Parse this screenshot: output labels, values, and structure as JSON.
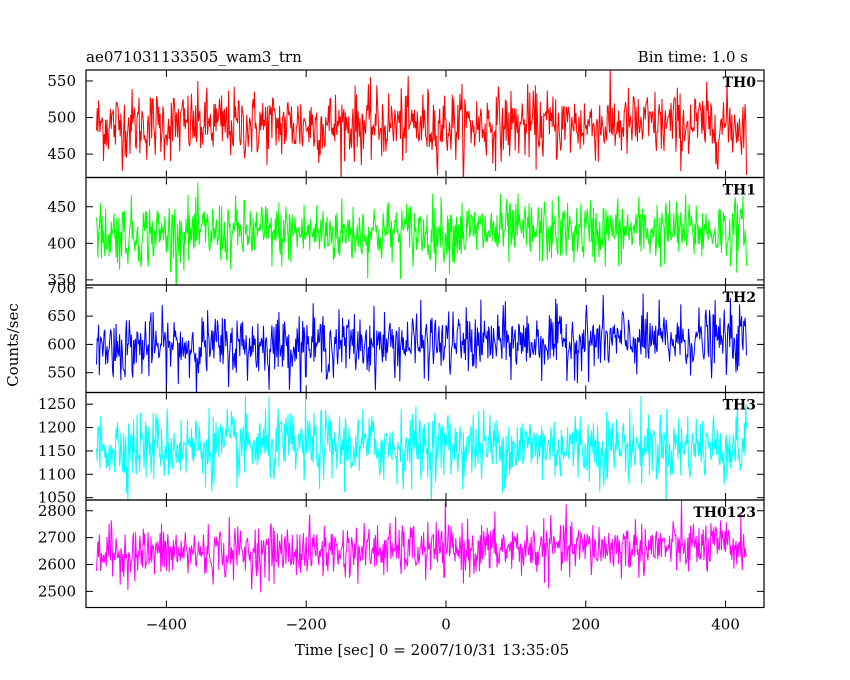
{
  "chart_data": {
    "type": "line",
    "title": "ae071031133505_wam3_trn",
    "bin_time": "Bin time: 1.0 s",
    "xlabel": "Time [sec] 0 = 2007/10/31 13:35:05",
    "ylabel": "Counts/sec",
    "xlim": [
      -515,
      455
    ],
    "x_range": [
      -500,
      430
    ],
    "x_step": 1,
    "xticks": [
      -400,
      -200,
      0,
      200,
      400
    ],
    "xtick_labels": [
      "−400",
      "−200",
      "0",
      "200",
      "400"
    ],
    "grid": false,
    "panels": [
      {
        "name": "TH0",
        "color": "#ff0000",
        "ylim": [
          418,
          565
        ],
        "yticks": [
          450,
          500,
          550
        ],
        "mean": 490,
        "noise": 24,
        "trend": 0
      },
      {
        "name": "TH1",
        "color": "#00ff00",
        "ylim": [
          343,
          490
        ],
        "yticks": [
          350,
          400,
          450
        ],
        "mean": 413,
        "noise": 22,
        "trend": 0.01
      },
      {
        "name": "TH2",
        "color": "#0000ff",
        "ylim": [
          515,
          705
        ],
        "yticks": [
          550,
          600,
          650,
          700
        ],
        "mean": 595,
        "noise": 28,
        "trend": 0.03
      },
      {
        "name": "TH3",
        "color": "#00ffff",
        "ylim": [
          1045,
          1275
        ],
        "yticks": [
          1050,
          1100,
          1150,
          1200,
          1250
        ],
        "mean": 1160,
        "noise": 38,
        "trend": 0
      },
      {
        "name": "TH0123",
        "color": "#ff00ff",
        "ylim": [
          2440,
          2840
        ],
        "yticks": [
          2500,
          2600,
          2700,
          2800
        ],
        "mean": 2640,
        "noise": 50,
        "trend": 0.06
      }
    ]
  }
}
